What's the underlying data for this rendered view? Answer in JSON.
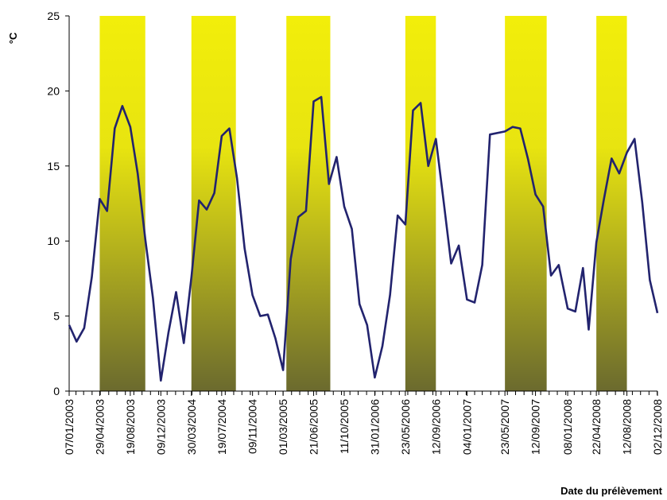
{
  "chart_data": {
    "type": "line",
    "title": "",
    "xlabel": "Date du prélèvement",
    "ylabel": "°C",
    "ylim": [
      0,
      25
    ],
    "yticks": [
      0,
      5,
      10,
      15,
      20,
      25
    ],
    "grid": false,
    "legend": "none",
    "line_color": "#22236e",
    "band_top_color": "#f2ee0a",
    "band_bottom_color": "#6b6a2e",
    "x_tick_labels": [
      "07/01/2003",
      "29/04/2003",
      "19/08/2003",
      "09/12/2003",
      "30/03/2004",
      "19/07/2004",
      "09/11/2004",
      "01/03/2005",
      "21/06/2005",
      "11/10/2005",
      "31/01/2006",
      "23/05/2006",
      "12/09/2006",
      "04/01/2007",
      "23/05/2007",
      "12/09/2007",
      "08/01/2008",
      "22/04/2008",
      "12/08/2008",
      "02/12/2008"
    ],
    "shaded_periods": [
      {
        "start": "29/04/2003",
        "end": "13/10/2003"
      },
      {
        "start": "30/03/2004",
        "end": "09/09/2004"
      },
      {
        "start": "13/03/2005",
        "end": "21/08/2005"
      },
      {
        "start": "23/05/2006",
        "end": "12/09/2006"
      },
      {
        "start": "23/05/2007",
        "end": "23/10/2007"
      },
      {
        "start": "22/04/2008",
        "end": "12/08/2008"
      }
    ],
    "series": [
      {
        "x": [
          "07/01/2003",
          "03/02/2003",
          "03/03/2003",
          "31/03/2003",
          "29/04/2003",
          "26/05/2003",
          "23/06/2003",
          "21/07/2003",
          "19/08/2003",
          "15/09/2003",
          "13/10/2003",
          "10/11/2003",
          "09/12/2003",
          "06/01/2004",
          "03/02/2004",
          "02/03/2004",
          "30/03/2004",
          "27/04/2004",
          "25/05/2004",
          "22/06/2004",
          "19/07/2004",
          "16/08/2004",
          "13/09/2004",
          "11/10/2004",
          "09/11/2004",
          "07/12/2004",
          "04/01/2005",
          "01/02/2005",
          "01/03/2005",
          "29/03/2005",
          "26/04/2005",
          "24/05/2005",
          "21/06/2005",
          "19/07/2005",
          "16/08/2005",
          "13/09/2005",
          "11/10/2005",
          "08/11/2005",
          "06/12/2005",
          "03/01/2006",
          "31/01/2006",
          "28/02/2006",
          "28/03/2006",
          "25/04/2006",
          "23/05/2006",
          "20/06/2006",
          "18/07/2006",
          "15/08/2006",
          "12/09/2006",
          "10/10/2006",
          "07/11/2006",
          "05/12/2006",
          "04/01/2007",
          "01/02/2007",
          "01/03/2007",
          "29/03/2007",
          "23/05/2007",
          "20/06/2007",
          "18/07/2007",
          "15/08/2007",
          "12/09/2007",
          "10/10/2007",
          "08/11/2007",
          "06/12/2007",
          "08/01/2008",
          "05/02/2008",
          "04/03/2008",
          "25/03/2008",
          "22/04/2008",
          "20/05/2008",
          "17/06/2008",
          "15/07/2008",
          "12/08/2008",
          "09/09/2008",
          "07/10/2008",
          "04/11/2008",
          "02/12/2008"
        ],
        "values": [
          4.4,
          3.3,
          4.2,
          7.6,
          12.8,
          12.0,
          17.5,
          19.0,
          17.6,
          14.5,
          10.1,
          6.2,
          0.7,
          3.9,
          6.6,
          3.2,
          7.6,
          12.7,
          12.1,
          13.2,
          17.0,
          17.5,
          14.2,
          9.5,
          6.4,
          5.0,
          5.1,
          3.5,
          1.4,
          8.8,
          11.6,
          12.0,
          19.3,
          19.6,
          13.8,
          15.6,
          12.3,
          10.8,
          5.8,
          4.4,
          0.9,
          3.0,
          6.4,
          11.7,
          11.1,
          18.7,
          19.2,
          15.0,
          16.8,
          12.7,
          8.5,
          9.7,
          6.1,
          5.9,
          8.4,
          17.1,
          17.3,
          17.6,
          17.5,
          15.5,
          13.1,
          12.3,
          7.7,
          8.4,
          5.5,
          5.3,
          8.2,
          4.1,
          9.9,
          12.8,
          15.5,
          14.5,
          15.9,
          16.8,
          12.6,
          7.4,
          5.2
        ]
      }
    ]
  }
}
